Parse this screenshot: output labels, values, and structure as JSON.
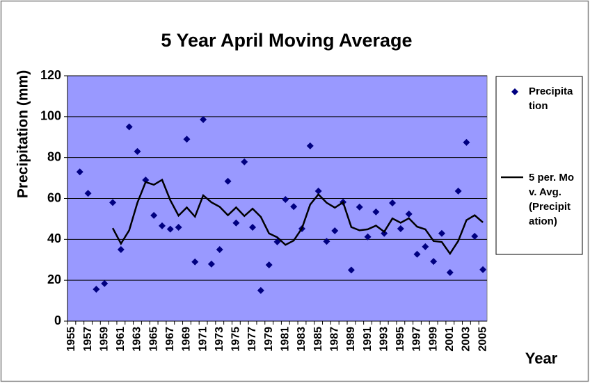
{
  "chart_data": {
    "type": "scatter-line",
    "title": "5 Year April Moving Average",
    "y_label": "Precipitation (mm)",
    "x_label": "Year",
    "categories": [
      "1955",
      null,
      "1957",
      null,
      "1959",
      null,
      "1961",
      null,
      "1963",
      null,
      "1965",
      null,
      "1967",
      null,
      "1969",
      null,
      "1971",
      null,
      "1973",
      null,
      "1975",
      null,
      "1977",
      null,
      "1979",
      null,
      "1981",
      null,
      "1983",
      null,
      "1985",
      null,
      "1987",
      null,
      "1989",
      null,
      "1991",
      null,
      "1993",
      null,
      "1995",
      null,
      "1997",
      null,
      "1999",
      null,
      "2001",
      null,
      "2003",
      null,
      "2005"
    ],
    "series": [
      {
        "name": "Precipitation",
        "color": "#000080",
        "marker": "diamond",
        "values": [
          null,
          73,
          62.5,
          15.6,
          18.4,
          58,
          35,
          95,
          83,
          69,
          51.7,
          46.6,
          45,
          45.9,
          89,
          29,
          98.6,
          27.9,
          35,
          68.4,
          48,
          77.9,
          45.9,
          15,
          27.5,
          38.8,
          59.5,
          56,
          45.2,
          85.7,
          63.6,
          39,
          44.2,
          58.2,
          25,
          55.8,
          41.2,
          53.4,
          42.9,
          57.8,
          45.2,
          52.4,
          32.7,
          36.4,
          29.2,
          42.9,
          23.8,
          63.6,
          87.4,
          41.5,
          25.2
        ]
      },
      {
        "name": "5 per. Mov. Avg. (Precipitation)",
        "color": "#000000",
        "marker": "line",
        "values": [
          null,
          null,
          null,
          null,
          null,
          45.5,
          37.9,
          44.4,
          57.9,
          68,
          66.7,
          69.1,
          59.1,
          51.6,
          55.6,
          51.1,
          61.5,
          58.1,
          55.9,
          51.8,
          55.6,
          51.4,
          55.0,
          51.0,
          42.9,
          41.0,
          37.3,
          39.4,
          45.4,
          57.0,
          62.0,
          57.9,
          55.5,
          58.1,
          46.0,
          44.4,
          44.9,
          46.7,
          43.7,
          50.2,
          48.1,
          50.3,
          46.2,
          44.9,
          39.2,
          38.7,
          33.0,
          39.2,
          49.4,
          51.8,
          48.3
        ]
      }
    ],
    "ylim": [
      0,
      120
    ],
    "yticks": [
      0,
      20,
      40,
      60,
      80,
      100,
      120
    ],
    "grid": true,
    "plot_color": "#9999ff",
    "legend": "right"
  }
}
